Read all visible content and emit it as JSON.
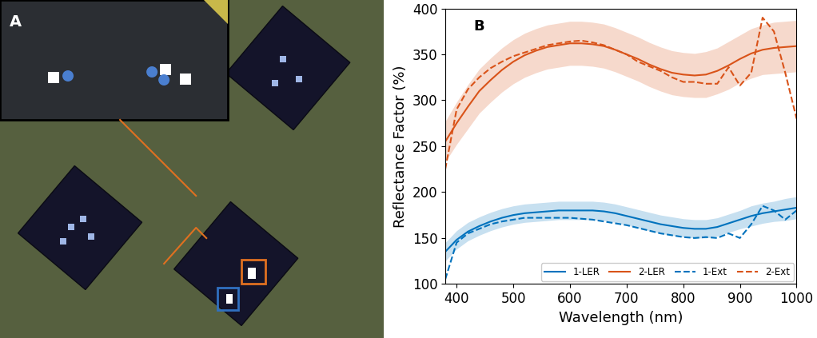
{
  "photo": {
    "label": "A"
  },
  "chart_data": {
    "type": "line",
    "annotations": [
      "B"
    ],
    "x_label": "Wavelength (nm)",
    "y_label": "Reflectance Factor (%)",
    "x": [
      380,
      400,
      420,
      440,
      460,
      480,
      500,
      520,
      540,
      560,
      580,
      600,
      620,
      640,
      660,
      680,
      700,
      720,
      740,
      760,
      780,
      800,
      820,
      840,
      860,
      880,
      900,
      920,
      940,
      960,
      980,
      1000
    ],
    "series": [
      {
        "name": "1-LER",
        "color": "#0072bd",
        "line_style": "solid",
        "values": [
          135,
          148,
          157,
          163,
          168,
          172,
          175,
          177,
          178,
          179,
          180,
          180,
          180,
          180,
          179,
          177,
          174,
          171,
          168,
          165,
          163,
          161,
          160,
          160,
          162,
          166,
          170,
          174,
          177,
          179,
          181,
          183
        ],
        "error": [
          10,
          10,
          10,
          10,
          10,
          10,
          10,
          10,
          10,
          10,
          10,
          10,
          10,
          10,
          10,
          10,
          10,
          10,
          10,
          10,
          10,
          10,
          10,
          10,
          10,
          10,
          10,
          11,
          11,
          11,
          12,
          12
        ]
      },
      {
        "name": "2-LER",
        "color": "#d95319",
        "line_style": "solid",
        "values": [
          255,
          275,
          293,
          310,
          322,
          333,
          342,
          349,
          354,
          358,
          360,
          362,
          362,
          361,
          359,
          355,
          350,
          345,
          339,
          334,
          330,
          328,
          327,
          328,
          332,
          338,
          345,
          351,
          355,
          357,
          358,
          359
        ],
        "error": [
          22,
          23,
          24,
          24,
          24,
          24,
          24,
          24,
          24,
          24,
          24,
          24,
          24,
          24,
          24,
          24,
          24,
          24,
          24,
          24,
          24,
          24,
          24,
          25,
          25,
          26,
          26,
          27,
          27,
          28,
          28,
          28
        ]
      },
      {
        "name": "1-Ext",
        "color": "#0072bd",
        "line_style": "dashed",
        "values": [
          105,
          145,
          155,
          160,
          165,
          168,
          170,
          172,
          172,
          172,
          172,
          172,
          171,
          170,
          168,
          166,
          164,
          161,
          158,
          155,
          153,
          151,
          150,
          151,
          150,
          155,
          150,
          165,
          185,
          180,
          170,
          180
        ]
      },
      {
        "name": "2-Ext",
        "color": "#d95319",
        "line_style": "dashed",
        "values": [
          225,
          290,
          312,
          325,
          335,
          342,
          348,
          352,
          356,
          360,
          362,
          364,
          365,
          363,
          360,
          355,
          350,
          342,
          337,
          332,
          325,
          320,
          320,
          318,
          318,
          336,
          316,
          330,
          390,
          375,
          330,
          280
        ]
      }
    ],
    "xlim": [
      380,
      1000
    ],
    "xticks": [
      400,
      500,
      600,
      700,
      800,
      900,
      1000
    ],
    "ylim": [
      100,
      400
    ],
    "yticks": [
      100,
      150,
      200,
      250,
      300,
      350,
      400
    ],
    "grid": false,
    "legend": "lower right"
  }
}
